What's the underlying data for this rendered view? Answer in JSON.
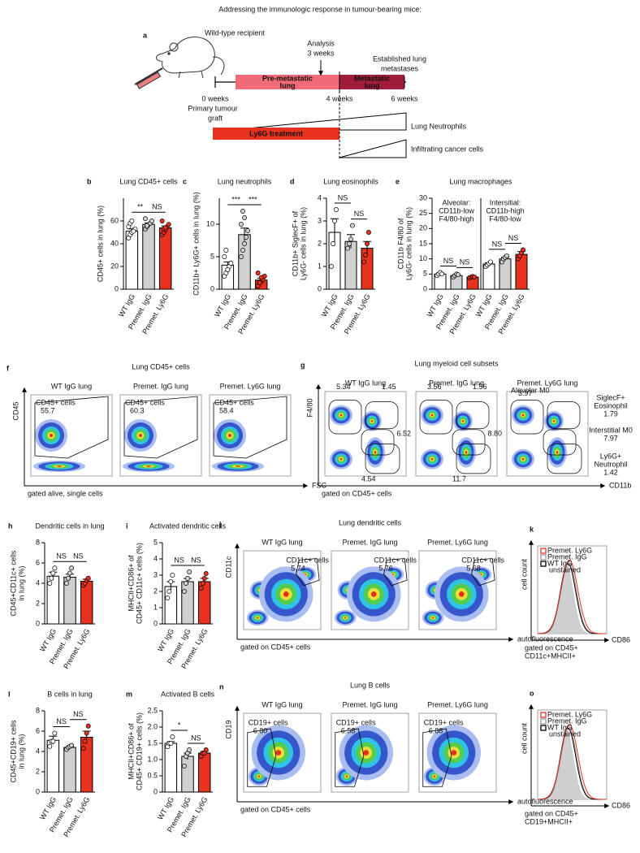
{
  "title": "Addressing the immunologic response in tumour-bearing mice:",
  "panel_a": {
    "letter": "a",
    "recipient": "Wild-type recipient",
    "analysis": [
      "Analysis",
      "3 weeks"
    ],
    "established": [
      "Established lung",
      "metastases"
    ],
    "premetastatic": [
      "Pre-metastatic",
      "lung"
    ],
    "metastatic": [
      "Metastatic",
      "lung"
    ],
    "start": [
      "0 weeks",
      "Primary tumour",
      "graft"
    ],
    "mid": "4 weeks",
    "end": "6 weeks",
    "neutrophils": "Lung Neutrophils",
    "treatment": "Ly6G treatment",
    "cancer": "Infiltrating cancer cells"
  },
  "chart_data": [
    {
      "type": "bar",
      "letter": "b",
      "title": "Lung CD45+ cells",
      "ylabel": [
        "CD45+ cells in lung (%)"
      ],
      "categories": [
        "WT IgG",
        "Premet. IgG",
        "Premet. Ly6G"
      ],
      "values": [
        51,
        57,
        54
      ],
      "errors": [
        2,
        1.2,
        1.5
      ],
      "points": [
        [
          45,
          48,
          50,
          52,
          53,
          55,
          58,
          60,
          51
        ],
        [
          53,
          55,
          57,
          58,
          60,
          62,
          56
        ],
        [
          48,
          50,
          52,
          55,
          57,
          60,
          53,
          54
        ]
      ],
      "colors": [
        "#ffffff",
        "#d0d0d0",
        "#e8321e"
      ],
      "ylim": [
        0,
        80
      ],
      "yticks": [
        0,
        20,
        40,
        60
      ],
      "significance": [
        "**",
        "NS"
      ]
    },
    {
      "type": "bar",
      "letter": "c",
      "title": "Lung neutrophils",
      "ylabel": [
        "CD11b+ Ly6G+ cells in lung (%)"
      ],
      "categories": [
        "WT IgG",
        "Premet. IgG",
        "Premet. Ly6G"
      ],
      "values": [
        3.7,
        8.4,
        1.4
      ],
      "errors": [
        0.5,
        1,
        0.3
      ],
      "points": [
        [
          2,
          2.5,
          3,
          3.5,
          4,
          5,
          6,
          3
        ],
        [
          5,
          6,
          7,
          8,
          9,
          10,
          12,
          11
        ],
        [
          0.5,
          1,
          1.2,
          1.5,
          2,
          2.5,
          1,
          1.8
        ]
      ],
      "colors": [
        "#ffffff",
        "#d0d0d0",
        "#e8321e"
      ],
      "ylim": [
        0,
        14
      ],
      "yticks": [
        0,
        5,
        10
      ],
      "significance": [
        "***",
        "***"
      ]
    },
    {
      "type": "bar",
      "letter": "d",
      "title": "Lung eosinophils",
      "ylabel": [
        "CD11b+ SiglecF+ of",
        "Ly6G- cells in lung (%)"
      ],
      "categories": [
        "WT IgG",
        "Premet. IgG",
        "Premet. Ly6G"
      ],
      "values": [
        2.5,
        2.1,
        1.8
      ],
      "errors": [
        0.6,
        0.3,
        0.3
      ],
      "points": [
        [
          1,
          2,
          3,
          3.5
        ],
        [
          1.8,
          2,
          2.2,
          2.8
        ],
        [
          1.2,
          1.5,
          2,
          2.5
        ]
      ],
      "colors": [
        "#ffffff",
        "#d0d0d0",
        "#e8321e"
      ],
      "ylim": [
        0,
        4
      ],
      "yticks": [
        0,
        1,
        2,
        3,
        4
      ],
      "significance": [
        "NS",
        "NS"
      ]
    },
    {
      "type": "bar",
      "letter": "e",
      "title": "Lung macrophages",
      "ylabel": [
        "CD11b F4/80 of",
        "Ly6G- cells in lung (%)"
      ],
      "categories": [
        "WT IgG",
        "Premet. IgG",
        "Premet. Ly6G",
        "WT IgG",
        "Premet. IgG",
        "Premet. Ly6G"
      ],
      "values": [
        5,
        4.5,
        4,
        8.3,
        10,
        11.5
      ],
      "errors": [
        0.4,
        0.3,
        0.2,
        0.4,
        0.5,
        0.9
      ],
      "points": [
        [
          4.5,
          5,
          5.5,
          5
        ],
        [
          4,
          4.5,
          5,
          4.8
        ],
        [
          3.8,
          4,
          4.2,
          4
        ],
        [
          7.5,
          8,
          8.5,
          9
        ],
        [
          9,
          10,
          10.5,
          11
        ],
        [
          10,
          11,
          12,
          13
        ]
      ],
      "colors": [
        "#ffffff",
        "#d0d0d0",
        "#e8321e",
        "#ffffff",
        "#d0d0d0",
        "#e8321e"
      ],
      "ylim": [
        0,
        30
      ],
      "yticks": [
        0,
        5,
        10,
        15,
        20,
        25,
        30
      ],
      "significance": [
        "NS",
        "NS",
        "NS",
        "NS"
      ],
      "groups": [
        [
          "Alveolar:",
          "CD11b-low",
          "F4/80-high"
        ],
        [
          "Intersitial:",
          "CD11b-high",
          "F4/80-low"
        ]
      ]
    },
    {
      "type": "bar",
      "letter": "h",
      "title": "Dendritic cells in lung",
      "ylabel": [
        "CD45+CD11c+ cells",
        "in lung (%)"
      ],
      "categories": [
        "WT IgG",
        "Premet. IgG",
        "Premet. Ly6G"
      ],
      "values": [
        4.7,
        4.6,
        4.2
      ],
      "errors": [
        0.4,
        0.3,
        0.2
      ],
      "points": [
        [
          4,
          4.5,
          5,
          5.5
        ],
        [
          4,
          4.5,
          5,
          5.5
        ],
        [
          3.8,
          4,
          4.3,
          4.5
        ]
      ],
      "colors": [
        "#ffffff",
        "#d0d0d0",
        "#e8321e"
      ],
      "ylim": [
        0,
        8
      ],
      "yticks": [
        0,
        2,
        4,
        6,
        8
      ],
      "significance": [
        "NS",
        "NS"
      ]
    },
    {
      "type": "bar",
      "letter": "i",
      "title": "Activated dendritic cells",
      "ylabel": [
        "MHCII+CD86+ of",
        "CD45+ CD11c+ cells (%)"
      ],
      "categories": [
        "WT IgG",
        "Premet. IgG",
        "Premet. Ly6G"
      ],
      "values": [
        2.3,
        2.6,
        2.6
      ],
      "errors": [
        0.3,
        0.2,
        0.2
      ],
      "points": [
        [
          1.6,
          2,
          2.6,
          3
        ],
        [
          2,
          2.5,
          2.8,
          3.2
        ],
        [
          2.2,
          2.5,
          2.8,
          3.1
        ]
      ],
      "colors": [
        "#ffffff",
        "#d0d0d0",
        "#e8321e"
      ],
      "ylim": [
        0,
        5
      ],
      "yticks": [
        0,
        1,
        2,
        3,
        4,
        5
      ],
      "significance": [
        "NS",
        "NS"
      ]
    },
    {
      "type": "bar",
      "letter": "l",
      "title": "B cells in lung",
      "ylabel": [
        "CD45+CD19+ cells",
        "in lung (%)"
      ],
      "categories": [
        "WT IgG",
        "Premet. IgG",
        "Premet. Ly6G"
      ],
      "values": [
        5.1,
        4.4,
        5.4
      ],
      "errors": [
        0.4,
        0.1,
        0.6
      ],
      "points": [
        [
          4.5,
          5,
          5,
          5.8
        ],
        [
          4.2,
          4.4,
          4.5,
          4.6
        ],
        [
          4.3,
          5,
          5.8,
          6.5
        ]
      ],
      "colors": [
        "#ffffff",
        "#d0d0d0",
        "#e8321e"
      ],
      "ylim": [
        0,
        8
      ],
      "yticks": [
        0,
        2,
        4,
        6,
        8
      ],
      "significance": [
        "NS",
        "NS"
      ]
    },
    {
      "type": "bar",
      "letter": "m",
      "title": "Activated B cells",
      "ylabel": [
        "MHCII+CD86+ of",
        "CD45+ CD19+ cells (%)"
      ],
      "categories": [
        "WT IgG",
        "Premet. IgG",
        "Premet. Ly6G"
      ],
      "values": [
        1.5,
        1.1,
        1.2
      ],
      "errors": [
        0.05,
        0.1,
        0.05
      ],
      "points": [
        [
          1.4,
          1.5,
          1.5,
          1.7
        ],
        [
          0.8,
          1.1,
          1.2,
          1.3
        ],
        [
          1.1,
          1.2,
          1.2,
          1.3
        ]
      ],
      "colors": [
        "#ffffff",
        "#d0d0d0",
        "#e8321e"
      ],
      "ylim": [
        0,
        2.5
      ],
      "yticks": [
        0,
        0.5,
        {
          "value": 1,
          "label": "1.0"
        },
        1.5,
        {
          "value": 2,
          "label": "2.0"
        },
        2.5
      ],
      "significance": [
        "*",
        "NS"
      ]
    }
  ],
  "flow": [
    {
      "letter": "f",
      "title": "Lung CD45+ cells",
      "ylabel": "CD45",
      "xlabel": "FSC",
      "gating": "gated alive, single cells",
      "plots": [
        {
          "title": "WT IgG lung",
          "gate": "CD45+ cells",
          "values": [
            "55.7"
          ]
        },
        {
          "title": "Premet. IgG lung",
          "gate": "CD45+ cells",
          "values": [
            "60.3"
          ]
        },
        {
          "title": "Premet. Ly6G lung",
          "gate": "CD45+ cells",
          "values": [
            "58.4"
          ]
        }
      ]
    },
    {
      "letter": "g",
      "title": "Lung myeloid cell subsets",
      "ylabel": "F4/80",
      "xlabel": "CD11b",
      "gating": "gated on CD45+ cells",
      "plots": [
        {
          "title": "WT IgG lung",
          "values": [
            "5.34",
            "1.45",
            "6.52",
            "4.54"
          ]
        },
        {
          "title": "Premet. IgG lung",
          "values": [
            "3.56",
            "1.56",
            "8.80",
            "11.7"
          ]
        },
        {
          "title": "Premet. Ly6G lung",
          "gate": "Alevolar M0",
          "values": [
            "3.97"
          ]
        }
      ],
      "side_labels": [
        [
          "SiglecF+",
          "Eosinophil",
          "1.79"
        ],
        [
          "Interstitial M0",
          "7.97"
        ],
        [
          "Ly6G+",
          "Neutrophil",
          "1.42"
        ]
      ]
    },
    {
      "letter": "j",
      "title": "Lung dendritic cells",
      "ylabel": "CD11c",
      "xlabel": "autofluorescence",
      "gating": "gated on CD45+ cells",
      "plots": [
        {
          "title": "WT IgG lung",
          "gate": "CD11c+ cells",
          "values": [
            "5.74"
          ]
        },
        {
          "title": "Premet. IgG lung",
          "gate": "CD11c+ cells",
          "values": [
            "5.76"
          ]
        },
        {
          "title": "Premet. Ly6G lung",
          "gate": "CD11c+ cells",
          "values": [
            "5.68"
          ]
        }
      ]
    },
    {
      "letter": "n",
      "title": "Lung B cells",
      "ylabel": "CD19",
      "xlabel": "autofluorescence",
      "gating": "gated on CD45+ cells",
      "plots": [
        {
          "title": "WT IgG lung",
          "gate": "CD19+ cells",
          "values": [
            "6.80"
          ]
        },
        {
          "title": "Premet. IgG lung",
          "gate": "CD19+ cells",
          "values": [
            "6.58"
          ]
        },
        {
          "title": "Premet. Ly6G lung",
          "gate": "CD19+ cells",
          "values": [
            "6.88"
          ]
        }
      ]
    }
  ],
  "histograms": [
    {
      "letter": "k",
      "ylabel": "cell count",
      "xlabel": "CD86",
      "gating": [
        "gated on CD45+",
        "CD11c+MHCII+"
      ],
      "legend": [
        {
          "name": "Premet. Ly6G",
          "color": "#e8321e"
        },
        {
          "name": "Premet. IgG",
          "color": "#999999"
        },
        {
          "name": "WT IgG",
          "color": "#000000"
        },
        {
          "name": "unstained",
          "color": "#cccccc"
        }
      ]
    },
    {
      "letter": "o",
      "ylabel": "cell count",
      "xlabel": "CD86",
      "gating": [
        "gated on CD45+",
        "CD19+MHCII+"
      ],
      "legend": [
        {
          "name": "Premet. Ly6G",
          "color": "#e8321e"
        },
        {
          "name": "Premet. IgG",
          "color": "#999999"
        },
        {
          "name": "WT IgG",
          "color": "#000000"
        },
        {
          "name": "unstained",
          "color": "#cccccc"
        }
      ]
    }
  ]
}
